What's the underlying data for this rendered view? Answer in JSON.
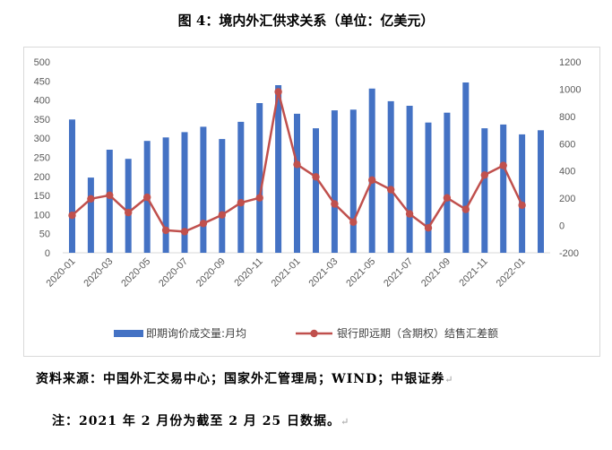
{
  "figure": {
    "title": "图 4：境内外汇供求关系（单位：亿美元）",
    "source": "资料来源：中国外汇交易中心；国家外汇管理局；WIND；中银证券",
    "note": "注：2021 年 2 月份为截至 2 月 25 日数据。",
    "return_mark": "↵"
  },
  "chart_data": {
    "type": "bar",
    "x": [
      "2020-01",
      "2020-02",
      "2020-03",
      "2020-04",
      "2020-05",
      "2020-06",
      "2020-07",
      "2020-08",
      "2020-09",
      "2020-10",
      "2020-11",
      "2020-12",
      "2021-01",
      "2021-02",
      "2021-03",
      "2021-04",
      "2021-05",
      "2021-06",
      "2021-07",
      "2021-08",
      "2021-09",
      "2021-10",
      "2021-11",
      "2021-12",
      "2022-01",
      "2022-02"
    ],
    "x_tick_labels": [
      "2020-01",
      "2020-03",
      "2020-05",
      "2020-07",
      "2020-09",
      "2020-11",
      "2021-01",
      "2021-03",
      "2021-05",
      "2021-07",
      "2021-09",
      "2021-11",
      "2022-01"
    ],
    "series": [
      {
        "name": "即期询价成交量:月均",
        "type": "bar",
        "axis": "left",
        "color": "#4472c4",
        "values": [
          349,
          197,
          270,
          246,
          293,
          302,
          316,
          330,
          298,
          343,
          392,
          439,
          364,
          326,
          373,
          375,
          430,
          397,
          385,
          341,
          367,
          446,
          326,
          336,
          310,
          321
        ]
      },
      {
        "name": "银行即远期（含期权）结售汇差额",
        "type": "line",
        "axis": "right",
        "color": "#c0504d",
        "values": [
          75,
          196,
          222,
          95,
          207,
          -35,
          -45,
          15,
          78,
          167,
          203,
          980,
          448,
          357,
          158,
          25,
          334,
          263,
          85,
          -17,
          203,
          118,
          370,
          440,
          149,
          null
        ]
      }
    ],
    "y_left": {
      "min": 0,
      "max": 500,
      "step": 50,
      "ticks": [
        "0",
        "50",
        "100",
        "150",
        "200",
        "250",
        "300",
        "350",
        "400",
        "450",
        "500"
      ]
    },
    "y_right": {
      "min": -200,
      "max": 1200,
      "step": 200,
      "ticks": [
        "-200",
        "0",
        "200",
        "400",
        "600",
        "800",
        "1000",
        "1200"
      ]
    },
    "legend_position": "bottom",
    "grid": false
  }
}
